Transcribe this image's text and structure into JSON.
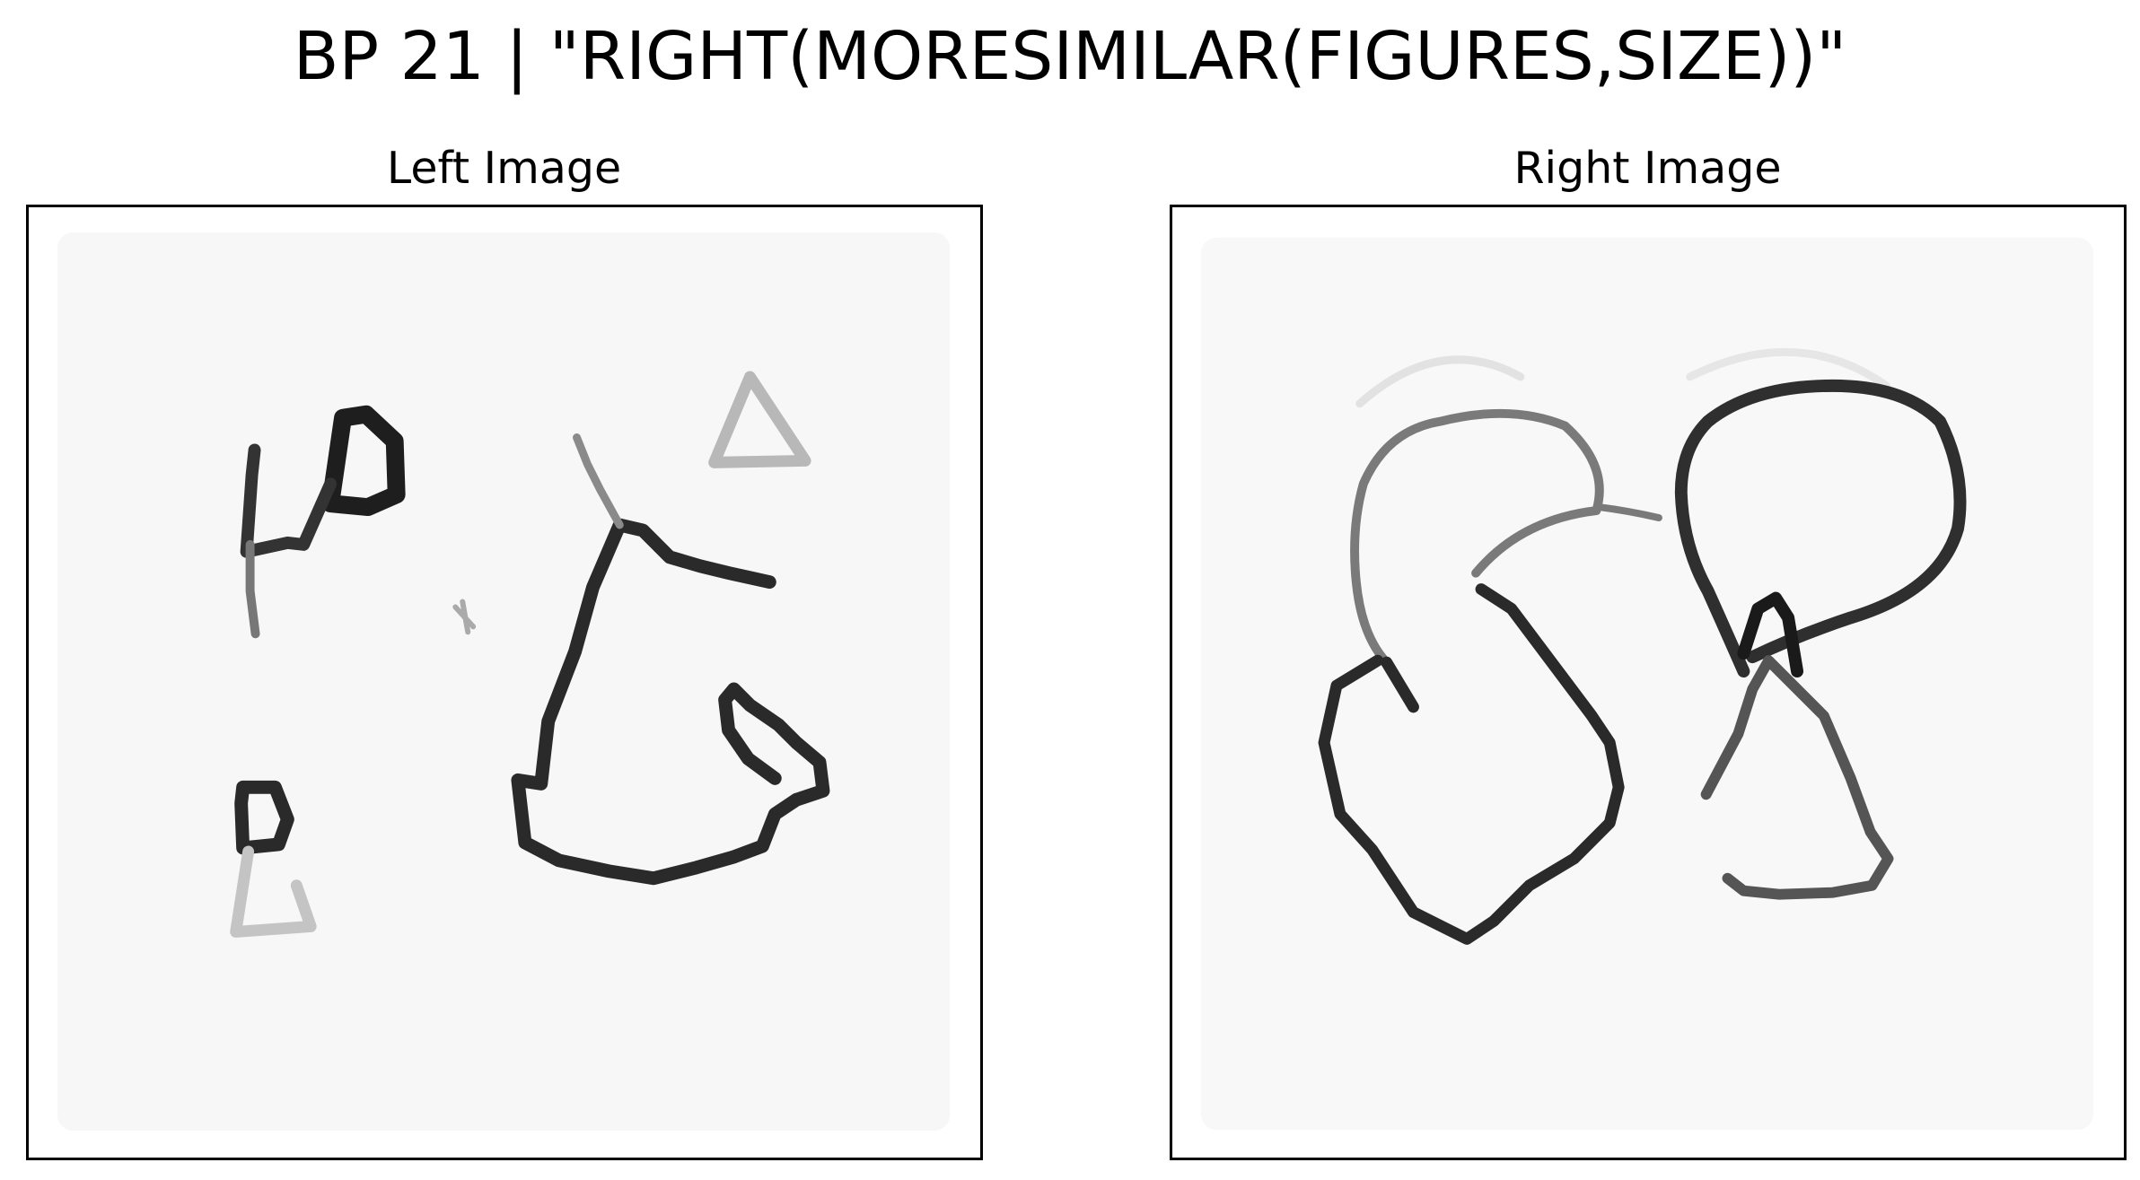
{
  "figure": {
    "title": "BP 21 | \"RIGHT(MORESIMILAR(FIGURES,SIZE))\""
  },
  "panels": [
    {
      "title": "Left Image"
    },
    {
      "title": "Right Image"
    }
  ],
  "colors": {
    "background": "#ffffff",
    "frame": "#000000",
    "ink_dark": "#1e1e1e",
    "ink_mid": "#555555",
    "ink_light": "#b8b8b8",
    "tile": "#f7f7f7"
  }
}
